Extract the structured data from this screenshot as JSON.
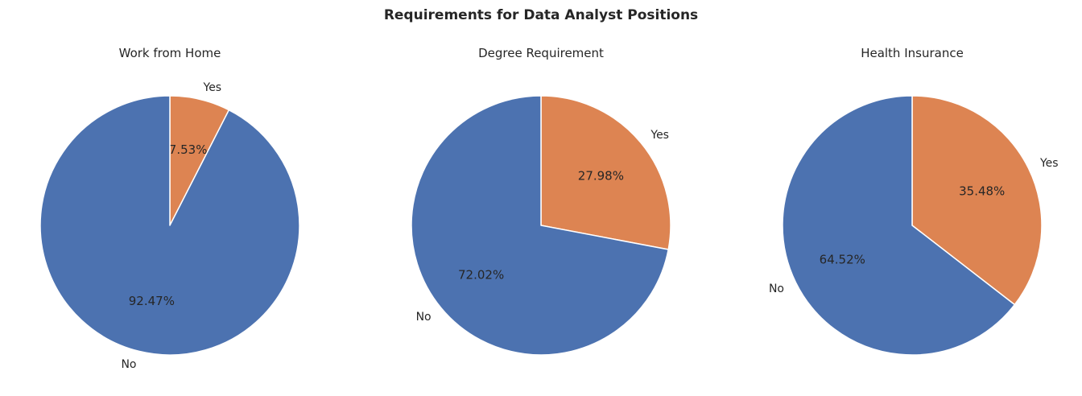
{
  "title": "Requirements for Data Analyst Positions",
  "colors": {
    "yes": "#dd8452",
    "no": "#4c72b0",
    "text": "#262626",
    "background": "#ffffff"
  },
  "chart_data": [
    {
      "type": "pie",
      "title": "Work from Home",
      "labels": [
        "Yes",
        "No"
      ],
      "values": [
        7.53,
        92.47
      ],
      "pct_labels": [
        "7.53%",
        "92.47%"
      ],
      "start_angle_deg": 90,
      "direction": "clockwise"
    },
    {
      "type": "pie",
      "title": "Degree Requirement",
      "labels": [
        "Yes",
        "No"
      ],
      "values": [
        27.98,
        72.02
      ],
      "pct_labels": [
        "27.98%",
        "72.02%"
      ],
      "start_angle_deg": 90,
      "direction": "clockwise"
    },
    {
      "type": "pie",
      "title": "Health Insurance",
      "labels": [
        "Yes",
        "No"
      ],
      "values": [
        35.48,
        64.52
      ],
      "pct_labels": [
        "35.48%",
        "64.52%"
      ],
      "start_angle_deg": 90,
      "direction": "clockwise"
    }
  ]
}
